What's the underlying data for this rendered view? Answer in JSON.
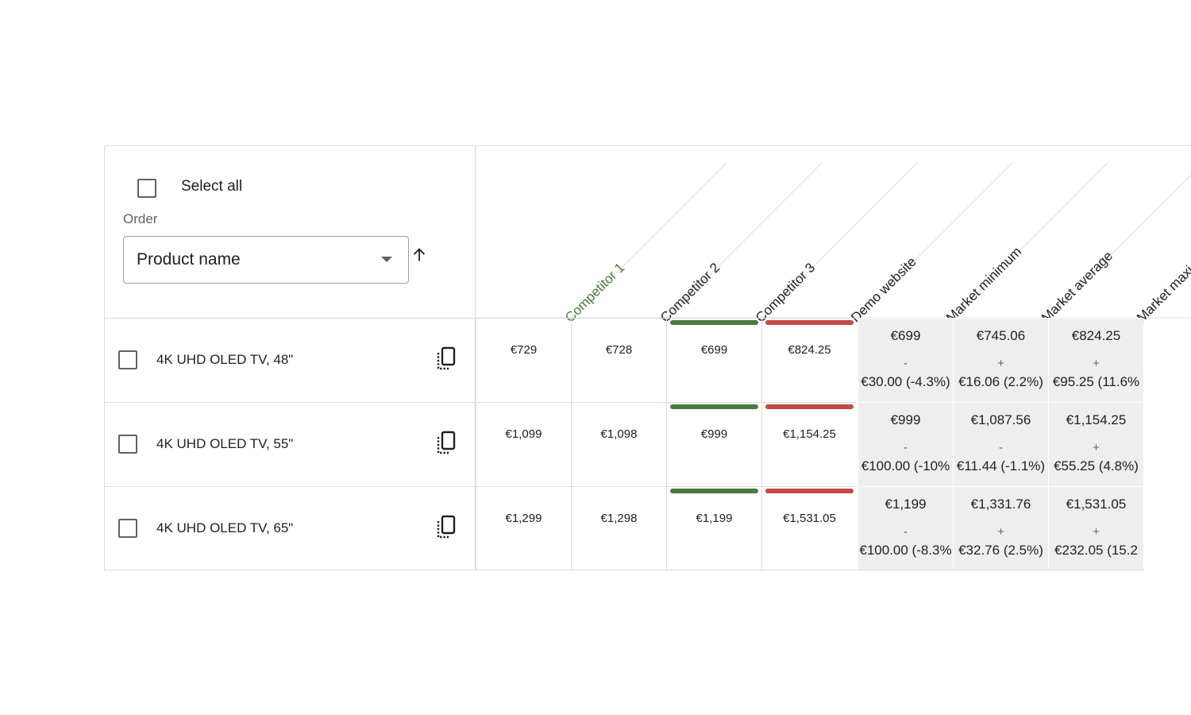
{
  "controls": {
    "select_all_label": "Select all",
    "order_label": "Order",
    "order_value": "Product name",
    "sort_direction": "ascending"
  },
  "columns": [
    {
      "label": "Competitor 1",
      "color": "#4a7a3d"
    },
    {
      "label": "Competitor 2",
      "color": "#202124"
    },
    {
      "label": "Competitor 3",
      "color": "#202124"
    },
    {
      "label": "Demo website",
      "color": "#202124"
    },
    {
      "label": "Market minimum",
      "color": "#202124"
    },
    {
      "label": "Market average",
      "color": "#202124"
    },
    {
      "label": "Market maxi",
      "color": "#202124"
    }
  ],
  "colors": {
    "green": "#4a7a3d",
    "red": "#c04b46",
    "market_bg": "#eeeeee",
    "border": "#dadce0"
  },
  "rows": [
    {
      "name": "4K UHD OLED TV, 48\"",
      "prices": [
        "€729",
        "€728",
        "€699",
        "€824.25"
      ],
      "market": [
        {
          "price": "€699",
          "sign": "-",
          "diff": "€30.00 (-4.3%)"
        },
        {
          "price": "€745.06",
          "sign": "+",
          "diff": "€16.06 (2.2%)"
        },
        {
          "price": "€824.25",
          "sign": "+",
          "diff": "€95.25 (11.6%"
        }
      ]
    },
    {
      "name": "4K UHD OLED TV, 55\"",
      "prices": [
        "€1,099",
        "€1,098",
        "€999",
        "€1,154.25"
      ],
      "market": [
        {
          "price": "€999",
          "sign": "-",
          "diff": "€100.00 (-10%"
        },
        {
          "price": "€1,087.56",
          "sign": "-",
          "diff": "€11.44 (-1.1%)"
        },
        {
          "price": "€1,154.25",
          "sign": "+",
          "diff": "€55.25 (4.8%)"
        }
      ]
    },
    {
      "name": "4K UHD OLED TV, 65\"",
      "prices": [
        "€1,299",
        "€1,298",
        "€1,199",
        "€1,531.05"
      ],
      "market": [
        {
          "price": "€1,199",
          "sign": "-",
          "diff": "€100.00 (-8.3%"
        },
        {
          "price": "€1,331.76",
          "sign": "+",
          "diff": "€32.76 (2.5%)"
        },
        {
          "price": "€1,531.05",
          "sign": "+",
          "diff": "€232.05 (15.2"
        }
      ]
    }
  ]
}
